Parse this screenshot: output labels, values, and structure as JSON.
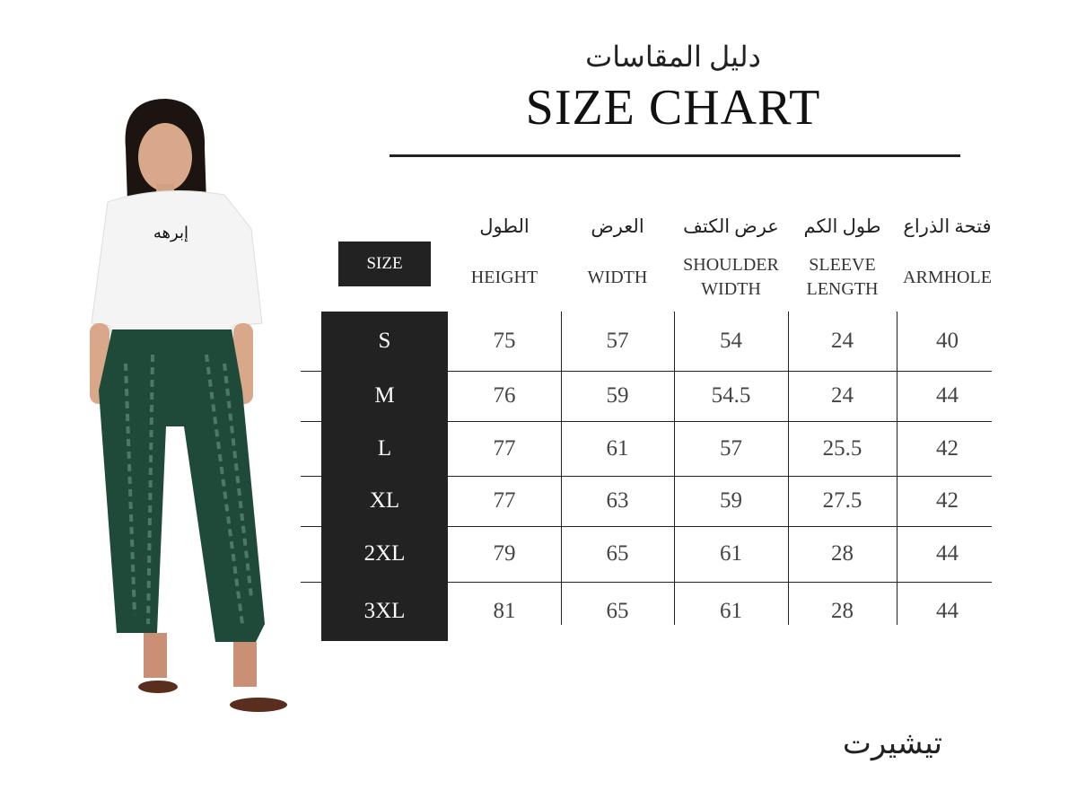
{
  "title_ar": "دليل المقاسات",
  "title_en": "SIZE CHART",
  "size_header": "SIZE",
  "columns": [
    {
      "ar": "الطول",
      "en": "HEIGHT"
    },
    {
      "ar": "العرض",
      "en": "WIDTH"
    },
    {
      "ar": "عرض الكتف",
      "en": "SHOULDER WIDTH"
    },
    {
      "ar": "طول الكم",
      "en": "SLEEVE LENGTH"
    },
    {
      "ar": "فتحة الذراع",
      "en": "ARMHOLE"
    }
  ],
  "rows": [
    {
      "size": "S",
      "values": [
        "75",
        "57",
        "54",
        "24",
        "40"
      ]
    },
    {
      "size": "M",
      "values": [
        "76",
        "59",
        "54.5",
        "24",
        "44"
      ]
    },
    {
      "size": "L",
      "values": [
        "77",
        "61",
        "57",
        "25.5",
        "42"
      ]
    },
    {
      "size": "XL",
      "values": [
        "77",
        "63",
        "59",
        "27.5",
        "42"
      ]
    },
    {
      "size": "2XL",
      "values": [
        "79",
        "65",
        "61",
        "28",
        "44"
      ]
    },
    {
      "size": "3XL",
      "values": [
        "81",
        "65",
        "61",
        "28",
        "44"
      ]
    }
  ],
  "footer_ar": "تيشيرت",
  "shirt_logo_text": "إبرهه",
  "colors": {
    "dark": "#222222",
    "pants": "#1f4a3a",
    "shirt": "#f4f4f4"
  }
}
